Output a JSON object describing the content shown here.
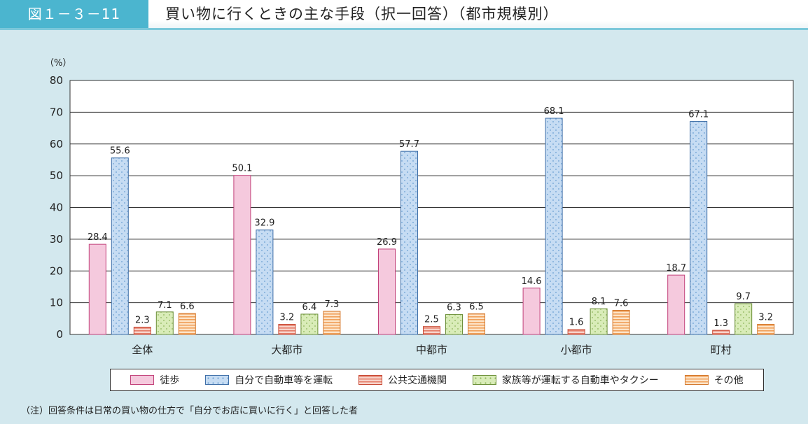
{
  "header": {
    "figure_number": "図１－３－11",
    "title": "買い物に行くときの主な手段（択一回答）（都市規模別）"
  },
  "note": "（注）回答条件は日常の買い物の仕方で「自分でお店に買いに行く」と回答した者",
  "colors": {
    "background": "#d3e8ee",
    "accent": "#4bb5cf"
  },
  "chart_data": {
    "type": "bar",
    "ylabel": "（%）",
    "ylim": [
      0,
      80
    ],
    "yticks": [
      0,
      10,
      20,
      30,
      40,
      50,
      60,
      70,
      80
    ],
    "grid": true,
    "legend_placement": "bottom",
    "categories": [
      "全体",
      "大都市",
      "中都市",
      "小都市",
      "町村"
    ],
    "series": [
      {
        "name": "徒歩",
        "values": [
          28.4,
          50.1,
          26.9,
          14.6,
          18.7
        ],
        "labels": [
          "28.4",
          "50.1",
          "26.9",
          "14.6",
          "18.7"
        ],
        "color": "#f5c9dd",
        "pattern": "solid"
      },
      {
        "name": "自分で自動車等を運転",
        "values": [
          55.6,
          32.9,
          57.7,
          68.1,
          67.1
        ],
        "labels": [
          "55.6",
          "32.9",
          "57.7",
          "68.1",
          "67.1"
        ],
        "color": "#c6dcf3",
        "pattern": "dots"
      },
      {
        "name": "公共交通機関",
        "values": [
          2.3,
          3.2,
          2.5,
          1.6,
          1.3
        ],
        "labels": [
          "2.3",
          "3.2",
          "2.5",
          "1.6",
          "1.3"
        ],
        "color": "#f4b6a8",
        "pattern": "hlines"
      },
      {
        "name": "家族等が運転する自動車やタクシー",
        "values": [
          7.1,
          6.4,
          6.3,
          8.1,
          9.7
        ],
        "labels": [
          "7.1",
          "6.4",
          "6.3",
          "8.1",
          "9.7"
        ],
        "color": "#d9ecb8",
        "pattern": "dots"
      },
      {
        "name": "その他",
        "values": [
          6.6,
          7.3,
          6.5,
          7.6,
          3.2
        ],
        "labels": [
          "6.6",
          "7.3",
          "6.5",
          "7.6",
          "3.2"
        ],
        "color": "#fbd3a8",
        "pattern": "hlines"
      }
    ]
  }
}
